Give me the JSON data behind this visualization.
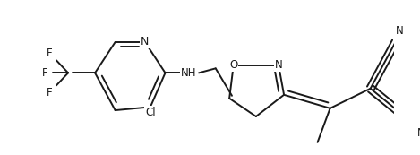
{
  "background_color": "#ffffff",
  "line_color": "#1a1a1a",
  "line_width": 1.4,
  "font_size": 8.5,
  "fig_width": 4.69,
  "fig_height": 1.73,
  "dpi": 100,
  "xlim": [
    0,
    469
  ],
  "ylim": [
    0,
    173
  ]
}
